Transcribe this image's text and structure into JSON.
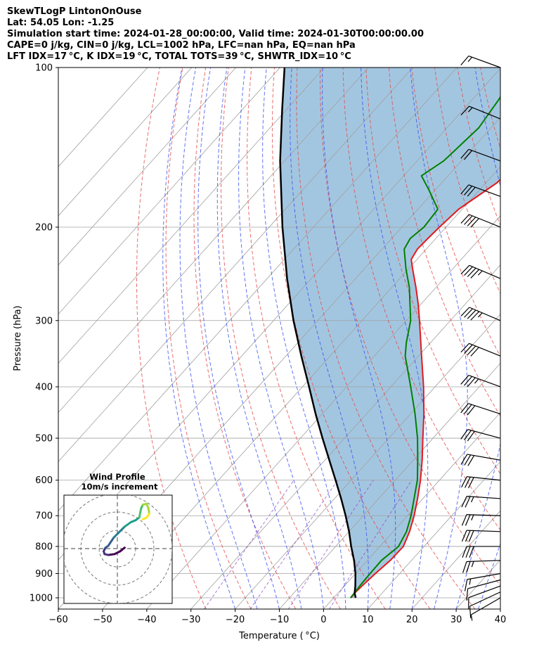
{
  "header": {
    "lines": [
      "SkewTLogP LintonOnOuse",
      "Lat: 54.05   Lon: -1.25",
      "Simulation start time: 2024-01-28_00:00:00, Valid time: 2024-01-30T00:00:00.00",
      "CAPE=0 j/kg, CIN=0 j/kg, LCL=1002 hPa, LFC=nan hPa, EQ=nan hPa",
      "LFT IDX=17 °C, K IDX=19 °C, TOTAL TOTS=39 °C, SHWTR_IDX=10 °C"
    ]
  },
  "colors": {
    "temperature": "#e31a1c",
    "dewpoint": "#008000",
    "parcel": "#000000",
    "cape_shade": "#a3c6e0",
    "dry_adiabat": "#e34a4a",
    "moist_adiabat": "#3a50f0",
    "mixing_ratio": "#8a3fc0",
    "isotherm": "#a0a0a0"
  },
  "chart_data": {
    "type": "line",
    "subtype": "skew-T log-P",
    "xlabel": "Temperature ( °C)",
    "ylabel": "Pressure (hPa)",
    "xlim": [
      -60,
      40
    ],
    "ylim": [
      1050,
      100
    ],
    "x_ticks": [
      -60,
      -50,
      -40,
      -30,
      -20,
      -10,
      0,
      10,
      20,
      30,
      40
    ],
    "x_tick_labels": [
      "−60",
      "−50",
      "−40",
      "−30",
      "−20",
      "−10",
      "0",
      "10",
      "20",
      "30",
      "40"
    ],
    "y_ticks": [
      1000,
      900,
      800,
      700,
      600,
      500,
      400,
      300,
      200,
      100
    ],
    "y_tick_labels": [
      "1000",
      "900",
      "800",
      "700",
      "600",
      "500",
      "400",
      "300",
      "200",
      "100"
    ],
    "y_scale": "log",
    "grid": true,
    "series": [
      {
        "key": "temperature",
        "points": [
          [
            1000,
            3.9
          ],
          [
            980,
            3.8
          ],
          [
            950,
            4.0
          ],
          [
            900,
            4.5
          ],
          [
            850,
            5.2
          ],
          [
            800,
            5.3
          ],
          [
            750,
            3.7
          ],
          [
            700,
            1.5
          ],
          [
            650,
            -1.2
          ],
          [
            600,
            -4.3
          ],
          [
            550,
            -8.0
          ],
          [
            500,
            -12.3
          ],
          [
            450,
            -17.0
          ],
          [
            400,
            -22.6
          ],
          [
            350,
            -29.3
          ],
          [
            300,
            -37.0
          ],
          [
            280,
            -40.5
          ],
          [
            260,
            -44.5
          ],
          [
            240,
            -49.0
          ],
          [
            230,
            -51.3
          ],
          [
            220,
            -52.0
          ],
          [
            210,
            -51.8
          ],
          [
            200,
            -51.5
          ],
          [
            185,
            -50.8
          ],
          [
            165,
            -47.5
          ],
          [
            150,
            -46.8
          ],
          [
            135,
            -48.6
          ],
          [
            120,
            -51.6
          ],
          [
            110,
            -54.0
          ],
          [
            100,
            -56.0
          ]
        ]
      },
      {
        "key": "dewpoint",
        "points": [
          [
            1000,
            3.8
          ],
          [
            980,
            3.7
          ],
          [
            950,
            3.5
          ],
          [
            900,
            3.3
          ],
          [
            850,
            3.2
          ],
          [
            800,
            4.2
          ],
          [
            750,
            3.0
          ],
          [
            700,
            0.8
          ],
          [
            650,
            -2.0
          ],
          [
            600,
            -5.0
          ],
          [
            550,
            -9.0
          ],
          [
            500,
            -13.5
          ],
          [
            450,
            -19.0
          ],
          [
            400,
            -25.5
          ],
          [
            350,
            -33.0
          ],
          [
            330,
            -35.5
          ],
          [
            300,
            -39.0
          ],
          [
            260,
            -46.0
          ],
          [
            240,
            -50.5
          ],
          [
            220,
            -55.0
          ],
          [
            210,
            -55.8
          ],
          [
            200,
            -55.0
          ],
          [
            185,
            -55.5
          ],
          [
            170,
            -61.5
          ],
          [
            160,
            -66.0
          ],
          [
            150,
            -64.0
          ],
          [
            130,
            -62.8
          ],
          [
            115,
            -64.0
          ],
          [
            100,
            -66.0
          ]
        ]
      },
      {
        "key": "parcel",
        "points": [
          [
            1000,
            5.0
          ],
          [
            980,
            3.8
          ],
          [
            950,
            2.5
          ],
          [
            900,
            0.0
          ],
          [
            850,
            -3.0
          ],
          [
            800,
            -6.5
          ],
          [
            750,
            -10.0
          ],
          [
            700,
            -14.0
          ],
          [
            650,
            -18.5
          ],
          [
            600,
            -23.5
          ],
          [
            550,
            -29.0
          ],
          [
            500,
            -35.0
          ],
          [
            450,
            -41.5
          ],
          [
            400,
            -48.5
          ],
          [
            350,
            -56.5
          ],
          [
            300,
            -65.5
          ],
          [
            250,
            -75.5
          ],
          [
            200,
            -87.0
          ],
          [
            150,
            -101.0
          ],
          [
            120,
            -111.0
          ],
          [
            100,
            -119.0
          ]
        ]
      }
    ],
    "wind_barbs": {
      "pressures": [
        1000,
        975,
        950,
        925,
        900,
        850,
        800,
        750,
        700,
        650,
        600,
        550,
        500,
        450,
        400,
        350,
        300,
        250,
        200,
        175,
        150,
        125,
        100
      ],
      "speed_kt": [
        8,
        10,
        12,
        14,
        15,
        25,
        30,
        30,
        25,
        25,
        30,
        30,
        30,
        30,
        35,
        40,
        45,
        45,
        40,
        30,
        20,
        15,
        15
      ],
      "direction_deg": [
        240,
        245,
        250,
        255,
        260,
        268,
        270,
        272,
        272,
        274,
        276,
        280,
        285,
        288,
        290,
        292,
        293,
        293,
        292,
        290,
        290,
        292,
        290
      ]
    },
    "hodograph": {
      "title": "Wind Profile",
      "subtitle": "10m/s increment",
      "rings_ms": [
        10,
        20,
        30
      ],
      "colormap": "viridis",
      "trace": [
        [
          4.0,
          0.5
        ],
        [
          1.5,
          -1.5
        ],
        [
          -1.5,
          -3.0
        ],
        [
          -5.0,
          -3.5
        ],
        [
          -7.0,
          -3.0
        ],
        [
          -7.5,
          -1.5
        ],
        [
          -6.5,
          0.5
        ],
        [
          -5.0,
          1.5
        ],
        [
          -4.0,
          3.0
        ],
        [
          -2.0,
          6.0
        ],
        [
          1.0,
          9.0
        ],
        [
          4.0,
          12.0
        ],
        [
          7.5,
          14.5
        ],
        [
          10.0,
          15.5
        ],
        [
          12.0,
          17.0
        ],
        [
          12.5,
          19.5
        ],
        [
          13.0,
          22.0
        ],
        [
          14.0,
          24.0
        ],
        [
          16.0,
          24.5
        ],
        [
          17.0,
          22.0
        ],
        [
          17.5,
          19.0
        ],
        [
          16.0,
          17.0
        ],
        [
          14.0,
          16.0
        ]
      ]
    }
  }
}
